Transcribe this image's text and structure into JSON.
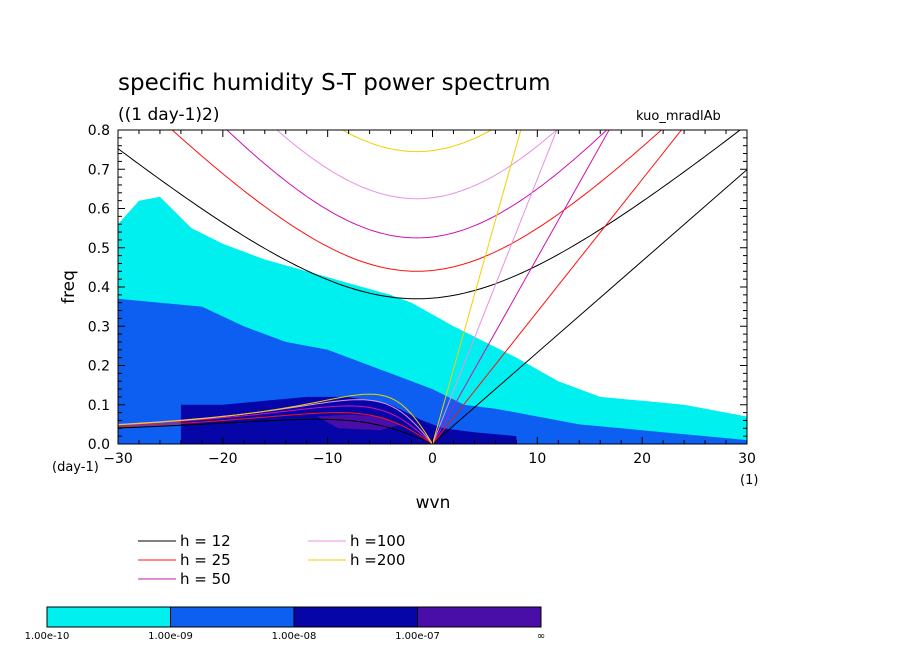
{
  "chart_data": {
    "type": "heatmap",
    "title": "specific humidity S-T power spectrum",
    "subtitle": "((1 day-1)2)",
    "run_label": "kuo_mradlAb",
    "xlabel": "wvn",
    "ylabel": "freq",
    "x_unit_label": "(1)",
    "y_unit_label": "(day-1)",
    "xlim": [
      -30,
      30
    ],
    "ylim": [
      0,
      0.8
    ],
    "xticks": [
      "-30",
      "-20",
      "-10",
      "0",
      "10",
      "20",
      "30"
    ],
    "yticks": [
      "0.0",
      "0.1",
      "0.2",
      "0.3",
      "0.4",
      "0.5",
      "0.6",
      "0.7",
      "0.8"
    ],
    "colorbar": {
      "labels": [
        "1.00e-10",
        "1.00e-09",
        "1.00e-08",
        "1.00e-07",
        "∞"
      ],
      "colors": [
        "#00f0f0",
        "#0d5ff2",
        "#0606a8",
        "#4a0ea8"
      ]
    },
    "legend": [
      {
        "label": "h = 12",
        "color": "#000000",
        "h": 12
      },
      {
        "label": "h = 25",
        "color": "#ff1010",
        "h": 25
      },
      {
        "label": "h = 50",
        "color": "#d010b0",
        "h": 50
      },
      {
        "label": "h =100",
        "color": "#e890e0",
        "h": 100
      },
      {
        "label": "h =200",
        "color": "#f0d000",
        "h": 200
      }
    ],
    "curves": {
      "inertio_gravity_min_freq": [
        0.37,
        0.44,
        0.525,
        0.625,
        0.745
      ],
      "min_at_wvn": -1.5,
      "eastward_slope": [
        0.0233,
        0.0337,
        0.0475,
        0.0675,
        0.095
      ],
      "rossby_peak_freq": [
        0.063,
        0.08,
        0.097,
        0.113,
        0.127
      ],
      "rossby_peak_wvn": [
        -11,
        -9,
        -8,
        -7,
        -6
      ]
    },
    "power_regions": [
      {
        "level": 1,
        "polygon": [
          [
            -30,
            0.56
          ],
          [
            -28,
            0.62
          ],
          [
            -26,
            0.63
          ],
          [
            -23,
            0.55
          ],
          [
            -20,
            0.51
          ],
          [
            -16,
            0.47
          ],
          [
            -12,
            0.44
          ],
          [
            -8,
            0.41
          ],
          [
            -4,
            0.38
          ],
          [
            -2,
            0.36
          ],
          [
            0,
            0.33
          ],
          [
            2,
            0.3
          ],
          [
            5,
            0.26
          ],
          [
            8,
            0.22
          ],
          [
            12,
            0.16
          ],
          [
            16,
            0.12
          ],
          [
            20,
            0.11
          ],
          [
            24,
            0.1
          ],
          [
            28,
            0.08
          ],
          [
            30,
            0.07
          ],
          [
            30,
            0
          ],
          [
            -30,
            0
          ]
        ]
      },
      {
        "level": 2,
        "polygon": [
          [
            -30,
            0.37
          ],
          [
            -26,
            0.36
          ],
          [
            -22,
            0.35
          ],
          [
            -18,
            0.3
          ],
          [
            -14,
            0.26
          ],
          [
            -10,
            0.24
          ],
          [
            -6,
            0.2
          ],
          [
            -3,
            0.17
          ],
          [
            0,
            0.14
          ],
          [
            3,
            0.1
          ],
          [
            6,
            0.09
          ],
          [
            10,
            0.07
          ],
          [
            14,
            0.05
          ],
          [
            18,
            0.04
          ],
          [
            22,
            0.03
          ],
          [
            26,
            0.02
          ],
          [
            30,
            0.01
          ],
          [
            30,
            0
          ],
          [
            -30,
            0
          ]
        ]
      },
      {
        "level": 3,
        "polygon": [
          [
            -24,
            0.1
          ],
          [
            -20,
            0.1
          ],
          [
            -16,
            0.11
          ],
          [
            -12,
            0.12
          ],
          [
            -8,
            0.12
          ],
          [
            -4,
            0.1
          ],
          [
            -1,
            0.06
          ],
          [
            1,
            0.04
          ],
          [
            4,
            0.03
          ],
          [
            8,
            0.02
          ],
          [
            8,
            0
          ],
          [
            -24,
            0
          ]
        ]
      },
      {
        "level": 4,
        "polygon": [
          [
            -11,
            0.07
          ],
          [
            -8,
            0.075
          ],
          [
            -5,
            0.07
          ],
          [
            -3,
            0.05
          ],
          [
            -5,
            0.035
          ],
          [
            -9,
            0.04
          ]
        ]
      }
    ]
  }
}
